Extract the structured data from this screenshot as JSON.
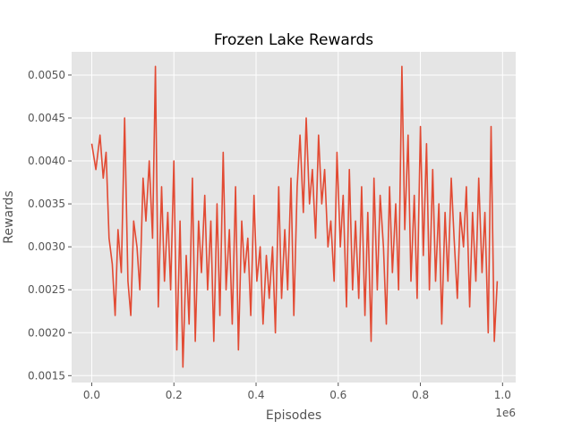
{
  "chart_data": {
    "type": "line",
    "title": "Frozen Lake Rewards",
    "xlabel": "Episodes",
    "ylabel": "Rewards",
    "x_offset_label": "1e6",
    "xlim": [
      -0.049,
      1.032
    ],
    "ylim": [
      0.00142,
      0.00527
    ],
    "x_ticks": [
      0.0,
      0.2,
      0.4,
      0.6,
      0.8,
      1.0
    ],
    "x_tick_labels": [
      "0.0",
      "0.2",
      "0.4",
      "0.6",
      "0.8",
      "1.0"
    ],
    "y_ticks": [
      0.0015,
      0.002,
      0.0025,
      0.003,
      0.0035,
      0.004,
      0.0045,
      0.005
    ],
    "y_tick_labels": [
      "0.0015",
      "0.0020",
      "0.0025",
      "0.0030",
      "0.0035",
      "0.0040",
      "0.0045",
      "0.0050"
    ],
    "grid": true,
    "series": [
      {
        "color": "#E24A33",
        "x": [
          0.0,
          0.01,
          0.02,
          0.028,
          0.035,
          0.042,
          0.05,
          0.057,
          0.064,
          0.072,
          0.08,
          0.088,
          0.095,
          0.102,
          0.11,
          0.117,
          0.125,
          0.132,
          0.14,
          0.148,
          0.155,
          0.162,
          0.17,
          0.177,
          0.185,
          0.192,
          0.2,
          0.207,
          0.215,
          0.222,
          0.23,
          0.237,
          0.245,
          0.252,
          0.26,
          0.267,
          0.275,
          0.282,
          0.29,
          0.297,
          0.305,
          0.312,
          0.32,
          0.327,
          0.335,
          0.342,
          0.35,
          0.357,
          0.365,
          0.372,
          0.38,
          0.387,
          0.395,
          0.402,
          0.41,
          0.417,
          0.425,
          0.432,
          0.44,
          0.447,
          0.455,
          0.462,
          0.47,
          0.477,
          0.485,
          0.492,
          0.5,
          0.507,
          0.515,
          0.522,
          0.53,
          0.537,
          0.545,
          0.552,
          0.56,
          0.567,
          0.575,
          0.582,
          0.59,
          0.597,
          0.605,
          0.612,
          0.62,
          0.627,
          0.635,
          0.642,
          0.65,
          0.657,
          0.665,
          0.672,
          0.68,
          0.687,
          0.695,
          0.702,
          0.71,
          0.717,
          0.725,
          0.732,
          0.74,
          0.747,
          0.755,
          0.762,
          0.77,
          0.777,
          0.785,
          0.792,
          0.8,
          0.807,
          0.815,
          0.822,
          0.83,
          0.837,
          0.845,
          0.852,
          0.86,
          0.867,
          0.875,
          0.882,
          0.89,
          0.897,
          0.905,
          0.912,
          0.92,
          0.927,
          0.935,
          0.942,
          0.95,
          0.957,
          0.965,
          0.972,
          0.98,
          0.987
        ],
        "values": [
          0.0042,
          0.0039,
          0.0043,
          0.0038,
          0.0041,
          0.0031,
          0.0028,
          0.0022,
          0.0032,
          0.0027,
          0.0045,
          0.0026,
          0.0022,
          0.0033,
          0.003,
          0.0025,
          0.0038,
          0.0033,
          0.004,
          0.0031,
          0.0051,
          0.0023,
          0.0037,
          0.0026,
          0.0034,
          0.0025,
          0.004,
          0.0018,
          0.0033,
          0.0016,
          0.0029,
          0.0021,
          0.0038,
          0.0019,
          0.0033,
          0.0027,
          0.0036,
          0.0025,
          0.0033,
          0.0019,
          0.0035,
          0.0022,
          0.0041,
          0.0025,
          0.0032,
          0.0021,
          0.0037,
          0.0018,
          0.0033,
          0.0027,
          0.0031,
          0.0022,
          0.0036,
          0.0026,
          0.003,
          0.0021,
          0.0029,
          0.0024,
          0.003,
          0.002,
          0.0037,
          0.0024,
          0.0032,
          0.0025,
          0.0038,
          0.0022,
          0.0037,
          0.0043,
          0.0034,
          0.0045,
          0.0035,
          0.0039,
          0.0031,
          0.0043,
          0.0035,
          0.0039,
          0.003,
          0.0033,
          0.0026,
          0.0041,
          0.003,
          0.0036,
          0.0023,
          0.0039,
          0.0025,
          0.0033,
          0.0024,
          0.0037,
          0.0022,
          0.0034,
          0.0019,
          0.0038,
          0.0025,
          0.0036,
          0.003,
          0.0021,
          0.0037,
          0.0027,
          0.0035,
          0.0025,
          0.0051,
          0.0032,
          0.0043,
          0.0026,
          0.0036,
          0.0024,
          0.0044,
          0.0029,
          0.0042,
          0.0025,
          0.0039,
          0.0026,
          0.0035,
          0.0021,
          0.0034,
          0.0026,
          0.0038,
          0.0031,
          0.0024,
          0.0034,
          0.003,
          0.0037,
          0.0023,
          0.0034,
          0.0026,
          0.0038,
          0.0027,
          0.0034,
          0.002,
          0.0044,
          0.0019,
          0.0026
        ]
      }
    ]
  }
}
